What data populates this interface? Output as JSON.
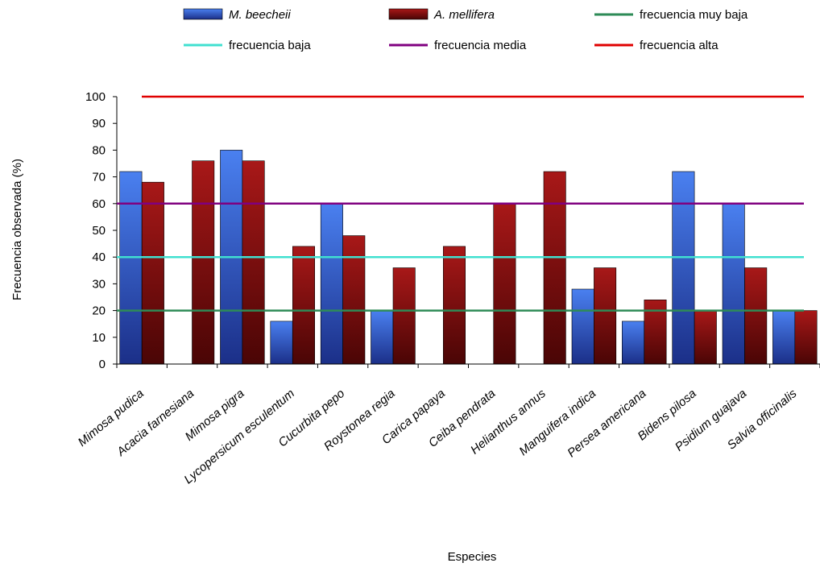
{
  "chart_data": {
    "type": "bar",
    "xlabel": "Especies",
    "ylabel": "Frecuencia observada (%)",
    "ylim": [
      0,
      100
    ],
    "yticks": [
      0,
      10,
      20,
      30,
      40,
      50,
      60,
      70,
      80,
      90,
      100
    ],
    "grid": false,
    "legend_position": "top",
    "categories": [
      "Mimosa pudica",
      "Acacia farnesiana",
      "Mimosa pigra",
      "Lycopersicum esculentum",
      "Cucurbita pepo",
      "Roystonea regia",
      "Carica papaya",
      "Ceiba pendrata",
      "Helianthus annus",
      "Manguifera indica",
      "Persea americana",
      "Bidens pilosa",
      "Psidium guajava",
      "Salvia officinalis"
    ],
    "series": [
      {
        "name": "M. beecheii",
        "color": "#2f5fd8",
        "values": [
          72,
          0,
          80,
          16,
          60,
          20,
          0,
          0,
          0,
          28,
          16,
          72,
          60,
          20
        ]
      },
      {
        "name": "A. mellifera",
        "color": "#8b0a0a",
        "values": [
          68,
          76,
          76,
          44,
          48,
          36,
          44,
          60,
          72,
          36,
          24,
          20,
          36,
          20
        ]
      }
    ],
    "reference_lines": [
      {
        "name": "frecuencia muy baja",
        "value": 20,
        "color": "#2e8b57"
      },
      {
        "name": "frecuencia baja",
        "value": 40,
        "color": "#40e0d0"
      },
      {
        "name": "frecuencia media",
        "value": 60,
        "color": "#800080"
      },
      {
        "name": "frecuencia alta",
        "value": 100,
        "color": "#e00000"
      }
    ]
  }
}
